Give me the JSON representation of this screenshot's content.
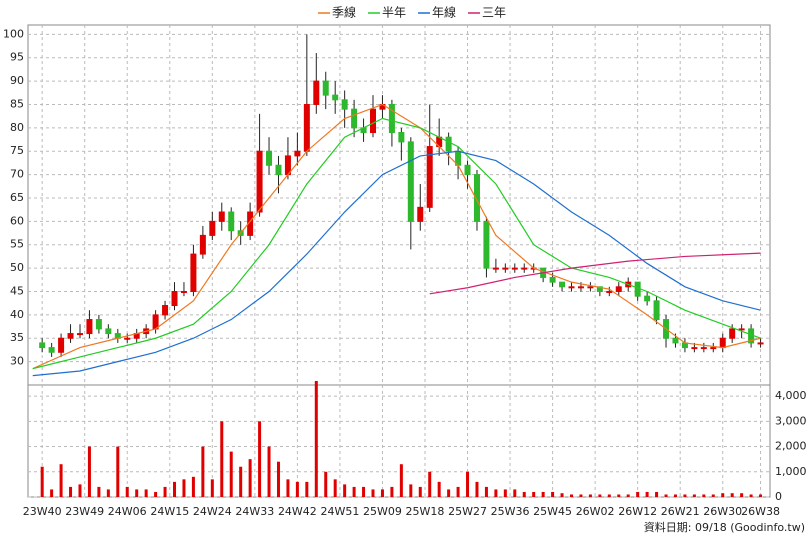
{
  "chart_data": {
    "type": "candlestick",
    "x": [
      0,
      2,
      4,
      6,
      8,
      10,
      12,
      14,
      16,
      18,
      20,
      22,
      24,
      26,
      28,
      30,
      32,
      34,
      36,
      38,
      40,
      42,
      44,
      46,
      48,
      50,
      52,
      54,
      56,
      58,
      60,
      62,
      64,
      66,
      68,
      70,
      72,
      74,
      76,
      78,
      80,
      82,
      84,
      86,
      88,
      90,
      92,
      94,
      96,
      98,
      100,
      102,
      104,
      106,
      108,
      110,
      112,
      114,
      116,
      118,
      120,
      122,
      124,
      126,
      128,
      130,
      132,
      134,
      136,
      138,
      140,
      142,
      144,
      146,
      148,
      150,
      152
    ],
    "open": [
      34,
      33,
      32,
      35,
      36,
      36,
      39,
      37,
      36,
      35,
      35,
      36,
      37,
      40,
      42,
      45,
      45,
      53,
      57,
      60,
      62,
      58,
      57,
      62,
      75,
      72,
      70,
      74,
      75,
      85,
      90,
      87,
      86,
      84,
      80,
      79,
      84,
      85,
      79,
      77,
      60,
      63,
      76,
      78,
      75,
      72,
      70,
      60,
      50,
      50,
      50,
      50,
      50,
      50,
      48,
      47,
      46,
      46,
      46,
      46,
      45,
      45,
      46,
      47,
      44,
      43,
      39,
      35,
      34,
      33,
      33,
      33,
      33,
      35,
      37,
      37,
      34
    ],
    "high": [
      35,
      34,
      36,
      38,
      38,
      41,
      40,
      38,
      37,
      36,
      37,
      38,
      41,
      43,
      47,
      47,
      55,
      59,
      62,
      64,
      63,
      60,
      64,
      83,
      78,
      74,
      78,
      79,
      100,
      96,
      92,
      90,
      88,
      86,
      82,
      87,
      87,
      86,
      80,
      78,
      68,
      85,
      82,
      79,
      76,
      73,
      71,
      61,
      52,
      51,
      51,
      51,
      51,
      50,
      49,
      47,
      47,
      47,
      47,
      46,
      46,
      47,
      48,
      47,
      45,
      44,
      40,
      36,
      35,
      34,
      34,
      34,
      36,
      38,
      38,
      38,
      35
    ],
    "low": [
      32,
      31,
      31,
      34,
      35,
      35,
      36,
      35,
      34,
      34,
      34,
      35,
      36,
      39,
      41,
      44,
      44,
      52,
      56,
      58,
      56,
      55,
      56,
      61,
      70,
      66,
      69,
      72,
      74,
      83,
      84,
      83,
      80,
      78,
      77,
      78,
      82,
      76,
      73,
      54,
      58,
      62,
      74,
      72,
      69,
      67,
      58,
      48,
      49,
      49,
      49,
      49,
      49,
      47,
      46,
      45,
      45,
      45,
      45,
      44,
      44,
      44,
      45,
      43,
      42,
      38,
      33,
      33,
      32,
      32,
      32,
      32,
      32,
      34,
      35,
      33,
      33
    ],
    "close": [
      33,
      32,
      35,
      36,
      36,
      39,
      37,
      36,
      35,
      35,
      36,
      37,
      40,
      42,
      45,
      45,
      53,
      57,
      60,
      62,
      58,
      57,
      62,
      75,
      72,
      70,
      74,
      75,
      85,
      90,
      87,
      86,
      84,
      80,
      79,
      84,
      85,
      79,
      77,
      60,
      63,
      76,
      78,
      75,
      72,
      70,
      60,
      50,
      50,
      50,
      50,
      50,
      50,
      48,
      47,
      46,
      46,
      46,
      46,
      45,
      45,
      46,
      47,
      44,
      43,
      39,
      35,
      34,
      33,
      33,
      33,
      33,
      35,
      37,
      37,
      34,
      34
    ],
    "volume": [
      1200,
      300,
      1300,
      400,
      500,
      2000,
      400,
      300,
      2000,
      400,
      300,
      300,
      200,
      400,
      600,
      700,
      800,
      2000,
      700,
      3000,
      1800,
      1200,
      1500,
      3000,
      2000,
      1400,
      700,
      600,
      600,
      4600,
      1000,
      700,
      500,
      400,
      400,
      300,
      300,
      400,
      1300,
      500,
      400,
      1000,
      600,
      300,
      400,
      1000,
      600,
      400,
      300,
      300,
      300,
      200,
      200,
      200,
      200,
      150,
      100,
      100,
      100,
      100,
      100,
      100,
      100,
      200,
      200,
      200,
      100,
      100,
      100,
      100,
      100,
      100,
      150,
      150,
      150,
      100,
      100
    ],
    "up_color": "#e00000",
    "down_color": "#2db82d",
    "volume_color": "#e00000",
    "series": [
      {
        "name": "季線",
        "color": "#f07820",
        "x": [
          -2,
          8,
          16,
          24,
          32,
          40,
          48,
          56,
          64,
          72,
          80,
          88,
          96,
          104,
          112,
          120,
          128,
          136,
          144,
          152
        ],
        "values": [
          28.5,
          33,
          35,
          37,
          43,
          55,
          65,
          75,
          82,
          85,
          80,
          72,
          57,
          50,
          47,
          45.5,
          40,
          34,
          33,
          35
        ]
      },
      {
        "name": "半年",
        "color": "#22cc22",
        "x": [
          -2,
          8,
          16,
          24,
          32,
          40,
          48,
          56,
          64,
          72,
          80,
          88,
          96,
          104,
          112,
          120,
          128,
          136,
          144,
          152
        ],
        "values": [
          28.5,
          31,
          33,
          35,
          38,
          45,
          55,
          68,
          78,
          82,
          80,
          76,
          68,
          55,
          50,
          48,
          45,
          41,
          38,
          35
        ]
      },
      {
        "name": "年線",
        "color": "#1f6fd0",
        "x": [
          -2,
          8,
          16,
          24,
          32,
          40,
          48,
          56,
          64,
          72,
          80,
          88,
          96,
          104,
          112,
          120,
          128,
          136,
          144,
          152
        ],
        "values": [
          27,
          28,
          30,
          32,
          35,
          39,
          45,
          53,
          62,
          70,
          74,
          75,
          73,
          68,
          62,
          57,
          51,
          46,
          43,
          41
        ]
      },
      {
        "name": "三年",
        "color": "#d0206f",
        "x": [
          82,
          90,
          100,
          112,
          124,
          136,
          152
        ],
        "values": [
          44.5,
          45.8,
          48,
          50,
          51.5,
          52.5,
          53.2
        ]
      }
    ],
    "xlim": [
      -3,
      154
    ],
    "xticks": [
      {
        "value": 0,
        "label": "23W40"
      },
      {
        "value": 9,
        "label": "23W49"
      },
      {
        "value": 18,
        "label": "24W06"
      },
      {
        "value": 27,
        "label": "24W15"
      },
      {
        "value": 36,
        "label": "24W24"
      },
      {
        "value": 45,
        "label": "24W33"
      },
      {
        "value": 54,
        "label": "24W42"
      },
      {
        "value": 63,
        "label": "24W51"
      },
      {
        "value": 72,
        "label": "25W09"
      },
      {
        "value": 81,
        "label": "25W18"
      },
      {
        "value": 90,
        "label": "25W27"
      },
      {
        "value": 99,
        "label": "25W36"
      },
      {
        "value": 108,
        "label": "25W45"
      },
      {
        "value": 117,
        "label": "26W02"
      },
      {
        "value": 126,
        "label": "26W12"
      },
      {
        "value": 135,
        "label": "26W21"
      },
      {
        "value": 144,
        "label": "26W30"
      },
      {
        "value": 152,
        "label": "26W38"
      }
    ],
    "ylim": [
      25,
      102
    ],
    "yticks": [
      30,
      35,
      40,
      45,
      50,
      55,
      60,
      65,
      70,
      75,
      80,
      85,
      90,
      95,
      100
    ],
    "y2lim": [
      0,
      4440
    ],
    "y2ticks": [
      0,
      {
        "value": 1000,
        "label": "1,000"
      },
      {
        "value": 2000,
        "label": "2,000"
      },
      {
        "value": 3000,
        "label": "3,000"
      },
      {
        "value": 4000,
        "label": "4,000"
      }
    ],
    "grid": true,
    "source": "資料日期: 09/18  (Goodinfo.tw)"
  }
}
